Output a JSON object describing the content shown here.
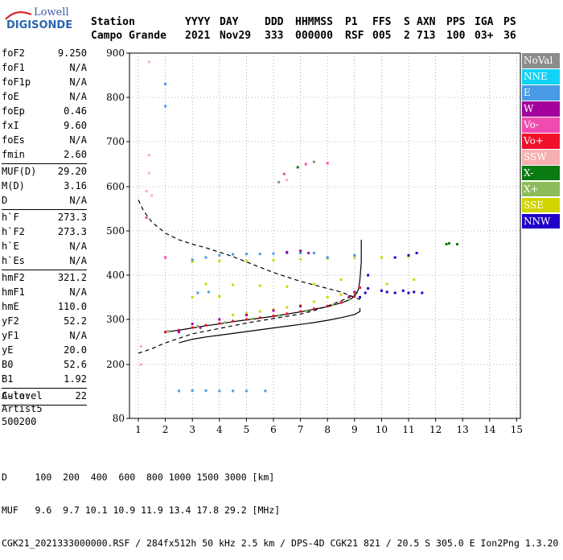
{
  "logo": {
    "line1": "Lowell",
    "line2": "DIGISONDE"
  },
  "header": {
    "row1": [
      "Station",
      "YYYY",
      "DAY",
      "DDD",
      "HHMMSS",
      "P1",
      "FFS",
      "S",
      "AXN",
      "PPS",
      "IGA",
      "PS"
    ],
    "row2": [
      "Campo Grande",
      "2021",
      "Nov29",
      "333",
      "000000",
      "RSF",
      "005",
      "2",
      "713",
      "100",
      "03+",
      "36"
    ]
  },
  "params": {
    "group1": [
      {
        "k": "foF2",
        "v": "9.250"
      },
      {
        "k": "foF1",
        "v": "N/A"
      },
      {
        "k": "foF1p",
        "v": "N/A"
      },
      {
        "k": "foE",
        "v": "N/A"
      },
      {
        "k": "foEp",
        "v": "0.46"
      },
      {
        "k": "fxI",
        "v": "9.60"
      },
      {
        "k": "foEs",
        "v": "N/A"
      },
      {
        "k": "fmin",
        "v": "2.60"
      }
    ],
    "group2": [
      {
        "k": "MUF(D)",
        "v": "29.20"
      },
      {
        "k": "M(D)",
        "v": "3.16"
      },
      {
        "k": "D",
        "v": "N/A"
      }
    ],
    "group3": [
      {
        "k": "h`F",
        "v": "273.3"
      },
      {
        "k": "h`F2",
        "v": "273.3"
      },
      {
        "k": "h`E",
        "v": "N/A"
      },
      {
        "k": "h`Es",
        "v": "N/A"
      }
    ],
    "group4": [
      {
        "k": "hmF2",
        "v": "321.2"
      },
      {
        "k": "hmF1",
        "v": "N/A"
      },
      {
        "k": "hmE",
        "v": "110.0"
      },
      {
        "k": "yF2",
        "v": "52.2"
      },
      {
        "k": "yF1",
        "v": "N/A"
      },
      {
        "k": "yE",
        "v": "20.0"
      },
      {
        "k": "B0",
        "v": "52.6"
      },
      {
        "k": "B1",
        "v": "1.92"
      }
    ],
    "group5": [
      {
        "k": "C-level",
        "v": "22"
      }
    ]
  },
  "auto": [
    "Auto:",
    "Artist5",
    "500200"
  ],
  "legend": [
    {
      "label": "NoVal",
      "color": "#8c8c8c"
    },
    {
      "label": "NNE",
      "color": "#12d3f5"
    },
    {
      "label": "E",
      "color": "#4a9ae6"
    },
    {
      "label": "W",
      "color": "#a3009c"
    },
    {
      "label": "Vo-",
      "color": "#f04cb0"
    },
    {
      "label": "Vo+",
      "color": "#f0102a"
    },
    {
      "label": "SSW",
      "color": "#f7b0b0"
    },
    {
      "label": "X-",
      "color": "#0a7a12"
    },
    {
      "label": "X+",
      "color": "#8cbc5a"
    },
    {
      "label": "SSE",
      "color": "#d2d400"
    },
    {
      "label": "NNW",
      "color": "#2000c8"
    }
  ],
  "footer": {
    "line1": "D     100  200  400  600  800 1000 1500 3000 [km]",
    "line2": "MUF   9.6  9.7 10.1 10.9 11.9 13.4 17.8 29.2 [MHz]",
    "line3": "CGK21_2021333000000.RSF / 284fx512h 50 kHz 2.5 km / DPS-4D CGK21 821 / 20.5 S 305.0 E Ion2Png 1.3.20"
  },
  "chart_data": {
    "type": "scatter",
    "title": "",
    "xlabel": "",
    "ylabel": "",
    "xlim": [
      1,
      15
    ],
    "ylim": [
      80,
      900
    ],
    "x_ticks": [
      1,
      2,
      3,
      4,
      5,
      6,
      7,
      8,
      9,
      10,
      11,
      12,
      13,
      14,
      15
    ],
    "y_ticks": [
      80,
      200,
      300,
      400,
      500,
      600,
      700,
      800,
      900
    ],
    "grid": "dotted",
    "legend_position": "right",
    "series": [
      {
        "color": "#f0102a",
        "points": [
          [
            2.0,
            272
          ],
          [
            2.5,
            276
          ],
          [
            3.0,
            282
          ],
          [
            3.5,
            287
          ],
          [
            4.0,
            291
          ],
          [
            4.5,
            296
          ],
          [
            5.0,
            300
          ],
          [
            5.5,
            304
          ],
          [
            6.0,
            308
          ],
          [
            6.5,
            313
          ],
          [
            7.0,
            318
          ],
          [
            7.5,
            324
          ],
          [
            8.0,
            330
          ],
          [
            8.5,
            338
          ],
          [
            9.0,
            352
          ],
          [
            9.2,
            372
          ]
        ]
      },
      {
        "color": "#8cbc5a",
        "points": [
          [
            2.1,
            274
          ],
          [
            3.2,
            285
          ],
          [
            4.2,
            293
          ],
          [
            5.2,
            301
          ],
          [
            6.2,
            309
          ],
          [
            7.2,
            319
          ],
          [
            8.2,
            333
          ],
          [
            8.8,
            346
          ]
        ]
      },
      {
        "color": "#d2d400",
        "points": [
          [
            4.5,
            310
          ],
          [
            5.0,
            314
          ],
          [
            5.5,
            318
          ],
          [
            6.0,
            322
          ],
          [
            6.5,
            327
          ],
          [
            7.0,
            332
          ],
          [
            7.5,
            340
          ],
          [
            8.0,
            350
          ],
          [
            8.5,
            356
          ],
          [
            9.0,
            360
          ],
          [
            3.5,
            380
          ],
          [
            4.5,
            378
          ],
          [
            5.5,
            376
          ],
          [
            6.5,
            374
          ],
          [
            7.5,
            380
          ],
          [
            8.5,
            390
          ],
          [
            3.0,
            430
          ],
          [
            4.0,
            432
          ],
          [
            5.0,
            432
          ],
          [
            6.0,
            434
          ],
          [
            7.0,
            436
          ],
          [
            8.0,
            438
          ],
          [
            9.0,
            440
          ],
          [
            10.0,
            440
          ],
          [
            11.0,
            442
          ],
          [
            3.0,
            350
          ],
          [
            4.0,
            352
          ],
          [
            10.2,
            380
          ],
          [
            11.2,
            390
          ]
        ]
      },
      {
        "color": "#4a9ae6",
        "points": [
          [
            3.0,
            435
          ],
          [
            3.5,
            440
          ],
          [
            4.0,
            445
          ],
          [
            4.5,
            447
          ],
          [
            5.0,
            448
          ],
          [
            5.5,
            448
          ],
          [
            6.0,
            449
          ],
          [
            6.5,
            450
          ],
          [
            7.0,
            450
          ],
          [
            7.5,
            450
          ],
          [
            3.2,
            360
          ],
          [
            3.6,
            362
          ],
          [
            2.0,
            780
          ],
          [
            2.0,
            830
          ],
          [
            2.5,
            141
          ],
          [
            3.0,
            142
          ],
          [
            3.5,
            142
          ],
          [
            4.0,
            141
          ],
          [
            4.5,
            141
          ],
          [
            5.0,
            141
          ],
          [
            5.7,
            141
          ],
          [
            8.0,
            440
          ],
          [
            9.0,
            445
          ]
        ]
      },
      {
        "color": "#a3009c",
        "points": [
          [
            6.5,
            452
          ],
          [
            7.0,
            455
          ],
          [
            7.3,
            450
          ],
          [
            5.0,
            310
          ],
          [
            4.0,
            300
          ],
          [
            3.0,
            290
          ],
          [
            8.8,
            352
          ],
          [
            9.0,
            362
          ],
          [
            2.5,
            272
          ],
          [
            3.3,
            282
          ],
          [
            6.0,
            320
          ],
          [
            7.0,
            330
          ]
        ]
      },
      {
        "color": "#2000c8",
        "points": [
          [
            9.2,
            350
          ],
          [
            9.4,
            360
          ],
          [
            9.5,
            370
          ],
          [
            10.0,
            365
          ],
          [
            10.2,
            362
          ],
          [
            10.5,
            360
          ],
          [
            10.8,
            365
          ],
          [
            11.0,
            360
          ],
          [
            11.2,
            362
          ],
          [
            11.5,
            360
          ],
          [
            10.5,
            440
          ],
          [
            11.0,
            445
          ],
          [
            11.3,
            450
          ],
          [
            9.5,
            400
          ]
        ]
      },
      {
        "color": "#0a7a12",
        "points": [
          [
            12.5,
            472
          ],
          [
            12.8,
            470
          ],
          [
            12.4,
            470
          ],
          [
            6.9,
            643
          ]
        ]
      },
      {
        "color": "#f7b0b0",
        "points": [
          [
            1.4,
            880
          ],
          [
            1.4,
            670
          ],
          [
            1.4,
            630
          ],
          [
            1.3,
            590
          ],
          [
            1.1,
            240
          ],
          [
            1.1,
            200
          ],
          [
            1.5,
            580
          ],
          [
            6.5,
            615
          ]
        ]
      },
      {
        "color": "#f04cb0",
        "points": [
          [
            6.4,
            628
          ],
          [
            7.2,
            650
          ],
          [
            8.0,
            652
          ],
          [
            2.0,
            440
          ],
          [
            1.3,
            530
          ]
        ]
      },
      {
        "color": "#8c8c8c",
        "points": [
          [
            7.5,
            655
          ],
          [
            6.2,
            610
          ]
        ]
      }
    ],
    "curves": [
      {
        "style": "dashed",
        "color": "#000",
        "points": [
          [
            1.0,
            225
          ],
          [
            1.5,
            235
          ],
          [
            2.0,
            248
          ],
          [
            2.5,
            258
          ],
          [
            3.0,
            268
          ],
          [
            3.5,
            274
          ],
          [
            4.0,
            280
          ],
          [
            4.5,
            286
          ],
          [
            5.0,
            292
          ],
          [
            5.5,
            297
          ],
          [
            6.0,
            302
          ],
          [
            6.5,
            307
          ],
          [
            7.0,
            312
          ],
          [
            7.5,
            320
          ],
          [
            8.0,
            330
          ],
          [
            8.5,
            342
          ],
          [
            9.0,
            356
          ],
          [
            9.2,
            365
          ]
        ]
      },
      {
        "style": "dashed",
        "color": "#000",
        "points": [
          [
            1.0,
            570
          ],
          [
            1.2,
            545
          ],
          [
            1.5,
            520
          ],
          [
            2.0,
            495
          ],
          [
            2.5,
            480
          ],
          [
            3.0,
            470
          ],
          [
            3.5,
            462
          ],
          [
            4.0,
            452
          ],
          [
            4.5,
            442
          ],
          [
            5.0,
            430
          ],
          [
            5.5,
            418
          ],
          [
            6.0,
            406
          ],
          [
            6.5,
            396
          ],
          [
            7.0,
            386
          ],
          [
            7.5,
            378
          ],
          [
            8.0,
            370
          ],
          [
            8.5,
            362
          ],
          [
            9.0,
            350
          ],
          [
            9.2,
            345
          ]
        ]
      },
      {
        "style": "solid",
        "color": "#000",
        "points": [
          [
            2.0,
            272
          ],
          [
            2.5,
            276
          ],
          [
            3.0,
            281
          ],
          [
            3.5,
            286
          ],
          [
            4.0,
            290
          ],
          [
            4.5,
            295
          ],
          [
            5.0,
            299
          ],
          [
            5.5,
            303
          ],
          [
            6.0,
            307
          ],
          [
            6.5,
            312
          ],
          [
            7.0,
            317
          ],
          [
            7.5,
            323
          ],
          [
            8.0,
            329
          ],
          [
            8.5,
            337
          ],
          [
            8.8,
            344
          ],
          [
            9.0,
            352
          ],
          [
            9.15,
            368
          ],
          [
            9.2,
            390
          ],
          [
            9.25,
            430
          ],
          [
            9.25,
            480
          ]
        ]
      },
      {
        "style": "solid",
        "color": "#000",
        "points": [
          [
            2.5,
            248
          ],
          [
            3.0,
            256
          ],
          [
            3.5,
            261
          ],
          [
            4.0,
            265
          ],
          [
            4.5,
            269
          ],
          [
            5.0,
            273
          ],
          [
            5.5,
            277
          ],
          [
            6.0,
            281
          ],
          [
            6.5,
            285
          ],
          [
            7.0,
            289
          ],
          [
            7.5,
            293
          ],
          [
            8.0,
            298
          ],
          [
            8.5,
            304
          ],
          [
            9.0,
            311
          ],
          [
            9.2,
            318
          ],
          [
            9.2,
            326
          ]
        ]
      }
    ]
  }
}
